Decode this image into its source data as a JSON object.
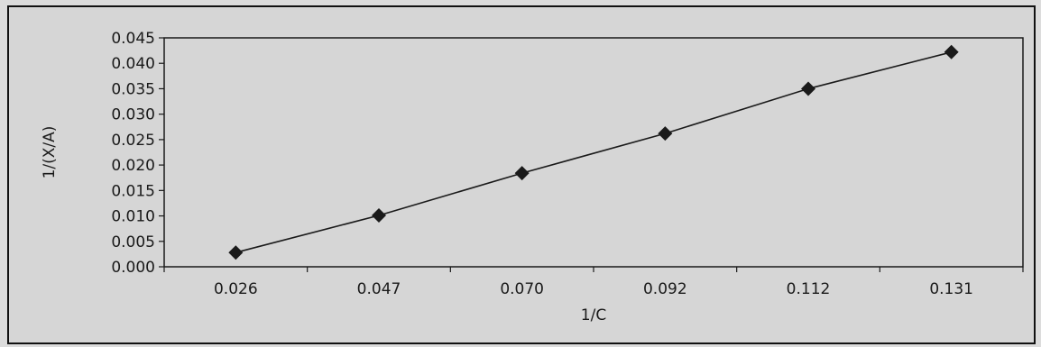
{
  "chart_data": {
    "type": "line",
    "title": "",
    "xlabel": "1/C",
    "ylabel": "1/(X/A)",
    "categories": [
      "0.026",
      "0.047",
      "0.070",
      "0.092",
      "0.112",
      "0.131"
    ],
    "series": [
      {
        "values": [
          0.0028,
          0.0101,
          0.0184,
          0.0262,
          0.035,
          0.0422
        ]
      }
    ],
    "ylim": [
      0,
      0.045
    ],
    "yticks": [
      "0.000",
      "0.005",
      "0.010",
      "0.015",
      "0.020",
      "0.025",
      "0.030",
      "0.035",
      "0.040",
      "0.045"
    ],
    "grid": false,
    "legend": "none",
    "marker": "diamond",
    "colors": {
      "line": "#1a1a1a",
      "marker": "#1a1a1a",
      "axis": "#1a1a1a",
      "background": "#d6d6d6"
    }
  }
}
